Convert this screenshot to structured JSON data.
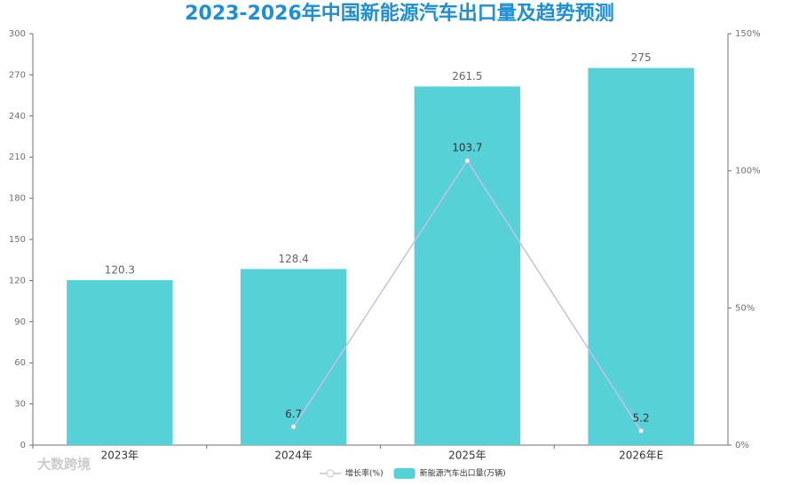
{
  "chart_data": {
    "type": "bar",
    "title": "2023-2026年中国新能源汽车出口量及趋势预测",
    "watermark": "大数跨境",
    "categories": [
      "2023年",
      "2024年",
      "2025年",
      "2026年E"
    ],
    "series": [
      {
        "name": "新能源汽车出口量(万辆)",
        "type": "bar",
        "color": "#56d1d7",
        "values": [
          120.3,
          128.4,
          261.5,
          275
        ]
      },
      {
        "name": "增长率(%)",
        "type": "line",
        "axis": "y2",
        "color": "#c5c0e6",
        "values": [
          null,
          6.7,
          103.7,
          5.2
        ]
      }
    ],
    "ylim": [
      0,
      300
    ],
    "yticks": [
      0,
      30,
      60,
      90,
      120,
      150,
      180,
      210,
      240,
      270,
      300
    ],
    "y2lim": [
      0,
      150
    ],
    "y2ticks": [
      {
        "value": 0,
        "label": "0%"
      },
      {
        "value": 50,
        "label": "50%"
      },
      {
        "value": 100,
        "label": "100%"
      },
      {
        "value": 150,
        "label": "150%"
      }
    ],
    "grid": false,
    "legend": "bottom"
  }
}
